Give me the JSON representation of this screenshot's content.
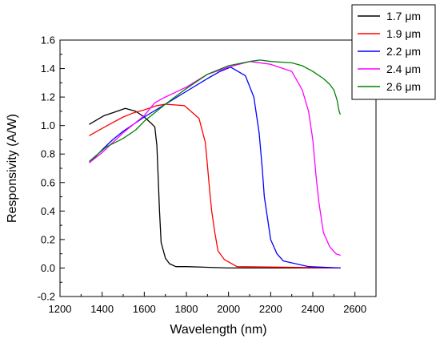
{
  "chart_data": {
    "type": "line",
    "title": "",
    "xlabel": "Wavelength (nm)",
    "ylabel": "Responsivity (A/W)",
    "xlim": [
      1200,
      2700
    ],
    "ylim": [
      -0.2,
      1.6
    ],
    "x_ticks": [
      "1200",
      "1400",
      "1600",
      "1800",
      "2000",
      "2200",
      "2400",
      "2600"
    ],
    "y_ticks": [
      "-0.2",
      "0.0",
      "0.2",
      "0.4",
      "0.6",
      "0.8",
      "1.0",
      "1.2",
      "1.4",
      "1.6"
    ],
    "grid": false,
    "legend_position": "top-right",
    "series": [
      {
        "name": "1.7 μm",
        "color": "#000000",
        "points": [
          [
            1340,
            1.01
          ],
          [
            1410,
            1.07
          ],
          [
            1450,
            1.09
          ],
          [
            1510,
            1.12
          ],
          [
            1560,
            1.1
          ],
          [
            1600,
            1.06
          ],
          [
            1630,
            1.02
          ],
          [
            1650,
            0.99
          ],
          [
            1660,
            0.86
          ],
          [
            1667,
            0.6
          ],
          [
            1672,
            0.41
          ],
          [
            1680,
            0.18
          ],
          [
            1700,
            0.07
          ],
          [
            1720,
            0.03
          ],
          [
            1750,
            0.01
          ],
          [
            1800,
            0.01
          ],
          [
            2000,
            0.0
          ],
          [
            2530,
            0.0
          ]
        ]
      },
      {
        "name": "1.9 μm",
        "color": "#ff0000",
        "points": [
          [
            1340,
            0.93
          ],
          [
            1400,
            0.98
          ],
          [
            1450,
            1.02
          ],
          [
            1500,
            1.06
          ],
          [
            1550,
            1.09
          ],
          [
            1600,
            1.11
          ],
          [
            1660,
            1.14
          ],
          [
            1700,
            1.15
          ],
          [
            1790,
            1.14
          ],
          [
            1860,
            1.05
          ],
          [
            1890,
            0.88
          ],
          [
            1900,
            0.72
          ],
          [
            1910,
            0.55
          ],
          [
            1920,
            0.4
          ],
          [
            1935,
            0.25
          ],
          [
            1950,
            0.12
          ],
          [
            1980,
            0.06
          ],
          [
            2040,
            0.01
          ],
          [
            2530,
            0.0
          ]
        ]
      },
      {
        "name": "2.2 μm",
        "color": "#0000ff",
        "points": [
          [
            1340,
            0.74
          ],
          [
            1400,
            0.83
          ],
          [
            1450,
            0.9
          ],
          [
            1500,
            0.96
          ],
          [
            1600,
            1.06
          ],
          [
            1700,
            1.15
          ],
          [
            1800,
            1.24
          ],
          [
            1900,
            1.33
          ],
          [
            1960,
            1.38
          ],
          [
            2010,
            1.41
          ],
          [
            2080,
            1.35
          ],
          [
            2120,
            1.2
          ],
          [
            2145,
            0.95
          ],
          [
            2160,
            0.7
          ],
          [
            2170,
            0.5
          ],
          [
            2185,
            0.35
          ],
          [
            2200,
            0.2
          ],
          [
            2230,
            0.1
          ],
          [
            2260,
            0.05
          ],
          [
            2380,
            0.01
          ],
          [
            2530,
            0.0
          ]
        ]
      },
      {
        "name": "2.4 μm",
        "color": "#ff00ff",
        "points": [
          [
            1340,
            0.74
          ],
          [
            1400,
            0.81
          ],
          [
            1450,
            0.88
          ],
          [
            1500,
            0.95
          ],
          [
            1600,
            1.07
          ],
          [
            1650,
            1.16
          ],
          [
            1700,
            1.2
          ],
          [
            1800,
            1.27
          ],
          [
            1900,
            1.36
          ],
          [
            2000,
            1.41
          ],
          [
            2100,
            1.45
          ],
          [
            2200,
            1.43
          ],
          [
            2300,
            1.38
          ],
          [
            2350,
            1.25
          ],
          [
            2380,
            1.1
          ],
          [
            2400,
            0.9
          ],
          [
            2415,
            0.65
          ],
          [
            2430,
            0.45
          ],
          [
            2450,
            0.25
          ],
          [
            2480,
            0.15
          ],
          [
            2510,
            0.1
          ],
          [
            2530,
            0.09
          ]
        ]
      },
      {
        "name": "2.6 μm",
        "color": "#008000",
        "points": [
          [
            1340,
            0.75
          ],
          [
            1420,
            0.85
          ],
          [
            1500,
            0.91
          ],
          [
            1560,
            0.97
          ],
          [
            1600,
            1.03
          ],
          [
            1700,
            1.15
          ],
          [
            1800,
            1.26
          ],
          [
            1900,
            1.36
          ],
          [
            2000,
            1.42
          ],
          [
            2100,
            1.45
          ],
          [
            2150,
            1.46
          ],
          [
            2200,
            1.45
          ],
          [
            2300,
            1.44
          ],
          [
            2350,
            1.42
          ],
          [
            2400,
            1.38
          ],
          [
            2450,
            1.33
          ],
          [
            2480,
            1.29
          ],
          [
            2500,
            1.25
          ],
          [
            2515,
            1.18
          ],
          [
            2525,
            1.1
          ],
          [
            2530,
            1.08
          ]
        ]
      }
    ]
  }
}
